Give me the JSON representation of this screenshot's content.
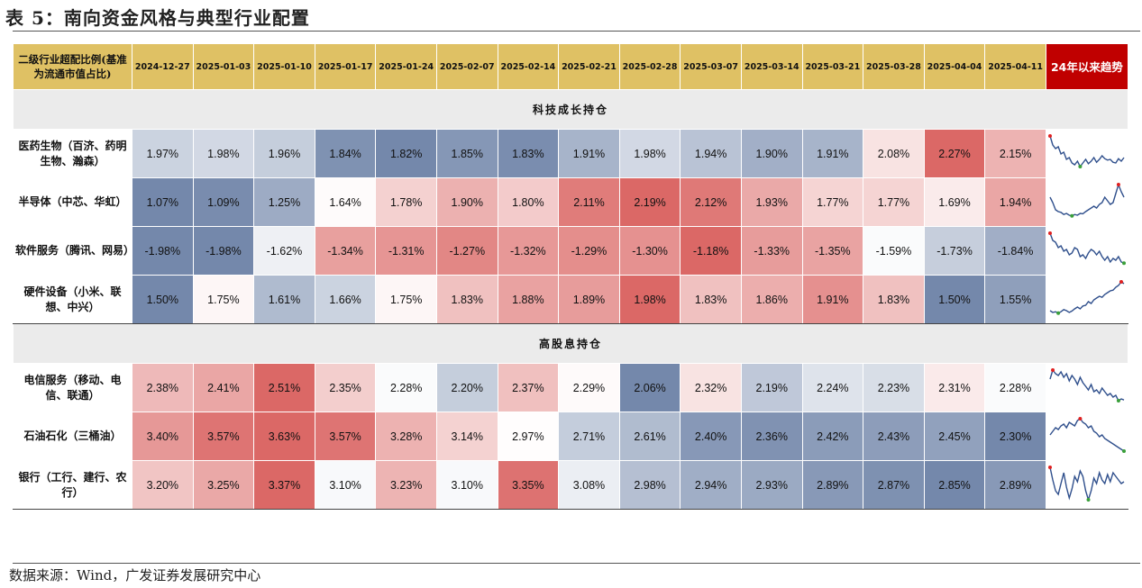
{
  "title": "表 5：南向资金风格与典型行业配置",
  "header": {
    "label": "二级行业超配比例(基准为流通市值占比)",
    "dates": [
      "2024-12-27",
      "2025-01-03",
      "2025-01-10",
      "2025-01-17",
      "2025-01-24",
      "2025-02-07",
      "2025-02-14",
      "2025-02-21",
      "2025-02-28",
      "2025-03-07",
      "2025-03-14",
      "2025-03-21",
      "2025-03-28",
      "2025-04-04",
      "2025-04-11"
    ],
    "trend_label": "24年以来趋势",
    "trend_color": "#c00000"
  },
  "colors": {
    "header_bg": "#dfc164",
    "section_bg": "#ebebeb",
    "high": "#d9605e",
    "low": "#6d82a7",
    "line": "#2f4f8c"
  },
  "sections": [
    {
      "name": "科技成长持仓",
      "rows": [
        {
          "name": "医药生物（百济、药明生物、瀚森）",
          "values": [
            "1.97%",
            "1.98%",
            "1.96%",
            "1.84%",
            "1.82%",
            "1.85%",
            "1.83%",
            "1.91%",
            "1.98%",
            "1.94%",
            "1.90%",
            "1.91%",
            "2.08%",
            "2.27%",
            "2.15%"
          ],
          "trend": [
            0.95,
            0.7,
            0.6,
            0.65,
            0.45,
            0.5,
            0.3,
            0.35,
            0.2,
            0.15,
            0.25,
            0.1,
            0.2,
            0.3,
            0.18,
            0.25,
            0.35,
            0.22,
            0.3,
            0.4,
            0.32,
            0.28,
            0.3,
            0.22,
            0.2,
            0.32,
            0.25,
            0.35
          ]
        },
        {
          "name": "半导体（中芯、华虹）",
          "values": [
            "1.07%",
            "1.09%",
            "1.25%",
            "1.64%",
            "1.78%",
            "1.90%",
            "1.80%",
            "2.11%",
            "2.19%",
            "2.12%",
            "1.93%",
            "1.77%",
            "1.77%",
            "1.69%",
            "1.94%"
          ],
          "trend": [
            0.6,
            0.45,
            0.25,
            0.2,
            0.18,
            0.12,
            0.15,
            0.1,
            0.08,
            0.12,
            0.1,
            0.15,
            0.14,
            0.2,
            0.25,
            0.3,
            0.35,
            0.3,
            0.4,
            0.45,
            0.6,
            0.5,
            0.4,
            0.45,
            0.7,
            0.95,
            0.75,
            0.6
          ]
        },
        {
          "name": "软件服务（腾讯、网易）",
          "values": [
            "-1.98%",
            "-1.98%",
            "-1.62%",
            "-1.34%",
            "-1.31%",
            "-1.27%",
            "-1.32%",
            "-1.29%",
            "-1.30%",
            "-1.18%",
            "-1.33%",
            "-1.35%",
            "-1.59%",
            "-1.73%",
            "-1.84%"
          ],
          "trend": [
            0.95,
            0.75,
            0.7,
            0.55,
            0.6,
            0.45,
            0.5,
            0.35,
            0.4,
            0.55,
            0.5,
            0.3,
            0.35,
            0.25,
            0.4,
            0.5,
            0.45,
            0.35,
            0.45,
            0.3,
            0.2,
            0.3,
            0.15,
            0.25,
            0.2,
            0.3,
            0.15,
            0.12
          ]
        },
        {
          "name": "硬件设备（小米、联想、中兴）",
          "values": [
            "1.50%",
            "1.75%",
            "1.61%",
            "1.66%",
            "1.75%",
            "1.83%",
            "1.88%",
            "1.89%",
            "1.98%",
            "1.83%",
            "1.86%",
            "1.91%",
            "1.83%",
            "1.50%",
            "1.55%"
          ],
          "trend": [
            0.15,
            0.1,
            0.12,
            0.08,
            0.12,
            0.18,
            0.15,
            0.1,
            0.14,
            0.2,
            0.25,
            0.2,
            0.28,
            0.3,
            0.4,
            0.35,
            0.45,
            0.5,
            0.55,
            0.52,
            0.6,
            0.65,
            0.7,
            0.72,
            0.8,
            0.85,
            0.95,
            0.9
          ]
        }
      ]
    },
    {
      "name": "高股息持仓",
      "rows": [
        {
          "name": "电信服务（移动、电信、联通）",
          "values": [
            "2.38%",
            "2.41%",
            "2.51%",
            "2.35%",
            "2.28%",
            "2.20%",
            "2.37%",
            "2.29%",
            "2.06%",
            "2.32%",
            "2.19%",
            "2.24%",
            "2.23%",
            "2.31%",
            "2.28%"
          ],
          "trend": [
            0.7,
            0.95,
            0.85,
            0.8,
            0.9,
            0.75,
            0.85,
            0.65,
            0.8,
            0.7,
            0.55,
            0.75,
            0.6,
            0.5,
            0.4,
            0.55,
            0.35,
            0.4,
            0.3,
            0.45,
            0.35,
            0.25,
            0.3,
            0.2,
            0.25,
            0.1,
            0.15,
            0.12
          ]
        },
        {
          "name": "石油石化（三桶油）",
          "values": [
            "3.40%",
            "3.57%",
            "3.63%",
            "3.57%",
            "3.28%",
            "3.14%",
            "2.97%",
            "2.71%",
            "2.61%",
            "2.40%",
            "2.36%",
            "2.42%",
            "2.43%",
            "2.45%",
            "2.30%"
          ],
          "trend": [
            0.5,
            0.6,
            0.7,
            0.65,
            0.75,
            0.8,
            0.7,
            0.85,
            0.8,
            0.75,
            0.9,
            0.95,
            0.85,
            0.8,
            0.7,
            0.75,
            0.6,
            0.55,
            0.45,
            0.5,
            0.4,
            0.35,
            0.3,
            0.25,
            0.2,
            0.15,
            0.1,
            0.05
          ]
        },
        {
          "name": "银行（工行、建行、农行）",
          "values": [
            "3.20%",
            "3.25%",
            "3.37%",
            "3.10%",
            "3.23%",
            "3.10%",
            "3.35%",
            "3.08%",
            "2.98%",
            "2.94%",
            "2.93%",
            "2.89%",
            "2.87%",
            "2.85%",
            "2.89%"
          ],
          "trend": [
            0.95,
            0.6,
            0.3,
            0.2,
            0.5,
            0.8,
            0.4,
            0.1,
            0.35,
            0.7,
            0.55,
            0.85,
            0.7,
            0.3,
            0.05,
            0.3,
            0.65,
            0.5,
            0.8,
            0.6,
            0.5,
            0.75,
            0.55,
            0.8,
            0.7,
            0.6,
            0.5,
            0.55
          ]
        }
      ]
    }
  ],
  "source": "数据来源：Wind，广发证券发展研究中心"
}
